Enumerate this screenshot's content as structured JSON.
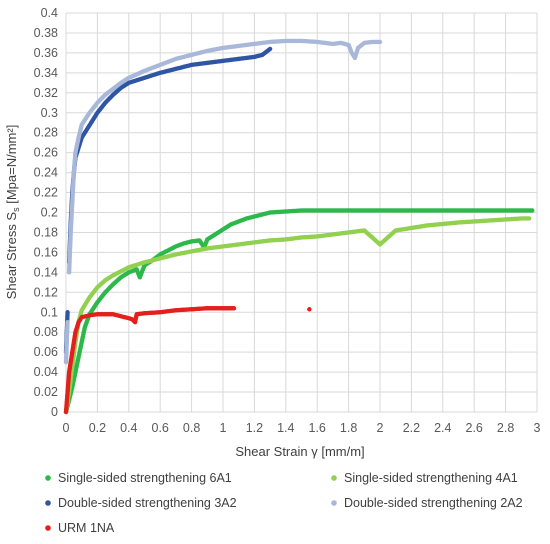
{
  "chart_data": {
    "type": "scatter",
    "xlabel": "Shear Strain γ [mm/m]",
    "ylabel": "Shear Stress S",
    "ylabel_sub": "s",
    "ylabel_tail": " [Mpa=N/mm²]",
    "xlim": [
      0,
      3
    ],
    "ylim": [
      0,
      0.4
    ],
    "x_ticks": [
      "0",
      "0.2",
      "0.4",
      "0.6",
      "0.8",
      "1",
      "1.2",
      "1.4",
      "1.6",
      "1.8",
      "2",
      "2.2",
      "2.4",
      "2.6",
      "2.8",
      "3"
    ],
    "y_ticks": [
      "0",
      "0.02",
      "0.04",
      "0.06",
      "0.08",
      "0.1",
      "0.12",
      "0.14",
      "0.16",
      "0.18",
      "0.2",
      "0.22",
      "0.24",
      "0.26",
      "0.28",
      "0.3",
      "0.32",
      "0.34",
      "0.36",
      "0.38",
      "0.4"
    ],
    "grid": true,
    "legend_position": "bottom",
    "series": [
      {
        "name": "Single-sided strengthening 6A1",
        "color": "#2db84a",
        "points": [
          [
            0.0,
            0.0
          ],
          [
            0.02,
            0.012
          ],
          [
            0.04,
            0.025
          ],
          [
            0.06,
            0.04
          ],
          [
            0.08,
            0.055
          ],
          [
            0.1,
            0.07
          ],
          [
            0.12,
            0.085
          ],
          [
            0.15,
            0.098
          ],
          [
            0.2,
            0.11
          ],
          [
            0.25,
            0.12
          ],
          [
            0.3,
            0.128
          ],
          [
            0.35,
            0.135
          ],
          [
            0.4,
            0.14
          ],
          [
            0.45,
            0.143
          ],
          [
            0.47,
            0.135
          ],
          [
            0.5,
            0.147
          ],
          [
            0.55,
            0.152
          ],
          [
            0.6,
            0.158
          ],
          [
            0.65,
            0.162
          ],
          [
            0.7,
            0.166
          ],
          [
            0.75,
            0.169
          ],
          [
            0.8,
            0.171
          ],
          [
            0.85,
            0.172
          ],
          [
            0.88,
            0.165
          ],
          [
            0.9,
            0.173
          ],
          [
            0.95,
            0.178
          ],
          [
            1.0,
            0.183
          ],
          [
            1.05,
            0.188
          ],
          [
            1.1,
            0.191
          ],
          [
            1.15,
            0.194
          ],
          [
            1.2,
            0.196
          ],
          [
            1.25,
            0.198
          ],
          [
            1.3,
            0.2
          ],
          [
            1.4,
            0.201
          ],
          [
            1.5,
            0.202
          ],
          [
            1.6,
            0.202
          ],
          [
            1.7,
            0.202
          ],
          [
            1.8,
            0.202
          ],
          [
            1.9,
            0.202
          ],
          [
            2.0,
            0.202
          ],
          [
            2.1,
            0.202
          ],
          [
            2.3,
            0.202
          ],
          [
            2.5,
            0.202
          ],
          [
            2.6,
            0.202
          ],
          [
            2.8,
            0.202
          ],
          [
            2.97,
            0.202
          ]
        ]
      },
      {
        "name": "Single-sided strengthening 4A1",
        "color": "#92d050",
        "points": [
          [
            0.0,
            0.0
          ],
          [
            0.02,
            0.02
          ],
          [
            0.04,
            0.045
          ],
          [
            0.06,
            0.07
          ],
          [
            0.08,
            0.09
          ],
          [
            0.1,
            0.102
          ],
          [
            0.15,
            0.115
          ],
          [
            0.2,
            0.125
          ],
          [
            0.25,
            0.132
          ],
          [
            0.3,
            0.137
          ],
          [
            0.35,
            0.141
          ],
          [
            0.4,
            0.145
          ],
          [
            0.5,
            0.15
          ],
          [
            0.6,
            0.154
          ],
          [
            0.7,
            0.158
          ],
          [
            0.8,
            0.161
          ],
          [
            0.9,
            0.164
          ],
          [
            1.0,
            0.166
          ],
          [
            1.1,
            0.168
          ],
          [
            1.2,
            0.17
          ],
          [
            1.3,
            0.172
          ],
          [
            1.4,
            0.173
          ],
          [
            1.5,
            0.175
          ],
          [
            1.6,
            0.176
          ],
          [
            1.7,
            0.178
          ],
          [
            1.8,
            0.18
          ],
          [
            1.9,
            0.182
          ],
          [
            1.95,
            0.175
          ],
          [
            2.0,
            0.168
          ],
          [
            2.1,
            0.182
          ],
          [
            2.3,
            0.187
          ],
          [
            2.5,
            0.19
          ],
          [
            2.7,
            0.192
          ],
          [
            2.9,
            0.194
          ],
          [
            2.95,
            0.194
          ]
        ]
      },
      {
        "name": "Double-sided strengthening 3A2",
        "color": "#2f55a4",
        "points": [
          [
            0.0,
            0.06
          ],
          [
            0.01,
            0.1
          ],
          [
            0.02,
            0.15
          ],
          [
            0.03,
            0.19
          ],
          [
            0.04,
            0.22
          ],
          [
            0.05,
            0.24
          ],
          [
            0.06,
            0.255
          ],
          [
            0.08,
            0.265
          ],
          [
            0.1,
            0.275
          ],
          [
            0.12,
            0.28
          ],
          [
            0.14,
            0.285
          ],
          [
            0.16,
            0.29
          ],
          [
            0.2,
            0.3
          ],
          [
            0.25,
            0.31
          ],
          [
            0.3,
            0.318
          ],
          [
            0.35,
            0.325
          ],
          [
            0.4,
            0.33
          ],
          [
            0.5,
            0.335
          ],
          [
            0.6,
            0.34
          ],
          [
            0.7,
            0.344
          ],
          [
            0.8,
            0.348
          ],
          [
            0.9,
            0.35
          ],
          [
            1.0,
            0.352
          ],
          [
            1.1,
            0.354
          ],
          [
            1.2,
            0.356
          ],
          [
            1.25,
            0.358
          ],
          [
            1.3,
            0.364
          ]
        ]
      },
      {
        "name": "Double-sided strengthening 2A2",
        "color": "#a9b8d8",
        "points": [
          [
            0.0,
            0.05
          ],
          [
            0.01,
            0.09
          ],
          [
            0.02,
            0.14
          ],
          [
            0.03,
            0.18
          ],
          [
            0.04,
            0.21
          ],
          [
            0.05,
            0.24
          ],
          [
            0.06,
            0.26
          ],
          [
            0.08,
            0.275
          ],
          [
            0.1,
            0.288
          ],
          [
            0.15,
            0.3
          ],
          [
            0.2,
            0.31
          ],
          [
            0.25,
            0.318
          ],
          [
            0.3,
            0.324
          ],
          [
            0.35,
            0.33
          ],
          [
            0.4,
            0.335
          ],
          [
            0.5,
            0.342
          ],
          [
            0.6,
            0.348
          ],
          [
            0.7,
            0.354
          ],
          [
            0.8,
            0.358
          ],
          [
            0.9,
            0.362
          ],
          [
            1.0,
            0.365
          ],
          [
            1.1,
            0.367
          ],
          [
            1.2,
            0.369
          ],
          [
            1.3,
            0.371
          ],
          [
            1.4,
            0.372
          ],
          [
            1.5,
            0.372
          ],
          [
            1.6,
            0.371
          ],
          [
            1.7,
            0.369
          ],
          [
            1.75,
            0.37
          ],
          [
            1.8,
            0.368
          ],
          [
            1.82,
            0.36
          ],
          [
            1.84,
            0.355
          ],
          [
            1.86,
            0.365
          ],
          [
            1.9,
            0.37
          ],
          [
            1.95,
            0.371
          ],
          [
            2.0,
            0.371
          ]
        ]
      },
      {
        "name": "URM 1NA",
        "color": "#e3201b",
        "points": [
          [
            0.0,
            0.0
          ],
          [
            0.01,
            0.02
          ],
          [
            0.02,
            0.04
          ],
          [
            0.04,
            0.06
          ],
          [
            0.06,
            0.08
          ],
          [
            0.08,
            0.09
          ],
          [
            0.1,
            0.095
          ],
          [
            0.15,
            0.097
          ],
          [
            0.2,
            0.098
          ],
          [
            0.3,
            0.098
          ],
          [
            0.35,
            0.096
          ],
          [
            0.4,
            0.094
          ],
          [
            0.42,
            0.093
          ],
          [
            0.44,
            0.09
          ],
          [
            0.45,
            0.098
          ],
          [
            0.5,
            0.099
          ],
          [
            0.6,
            0.1
          ],
          [
            0.7,
            0.102
          ],
          [
            0.8,
            0.103
          ],
          [
            0.9,
            0.104
          ],
          [
            1.07,
            0.104
          ],
          [
            1.55,
            0.103
          ]
        ]
      }
    ]
  }
}
